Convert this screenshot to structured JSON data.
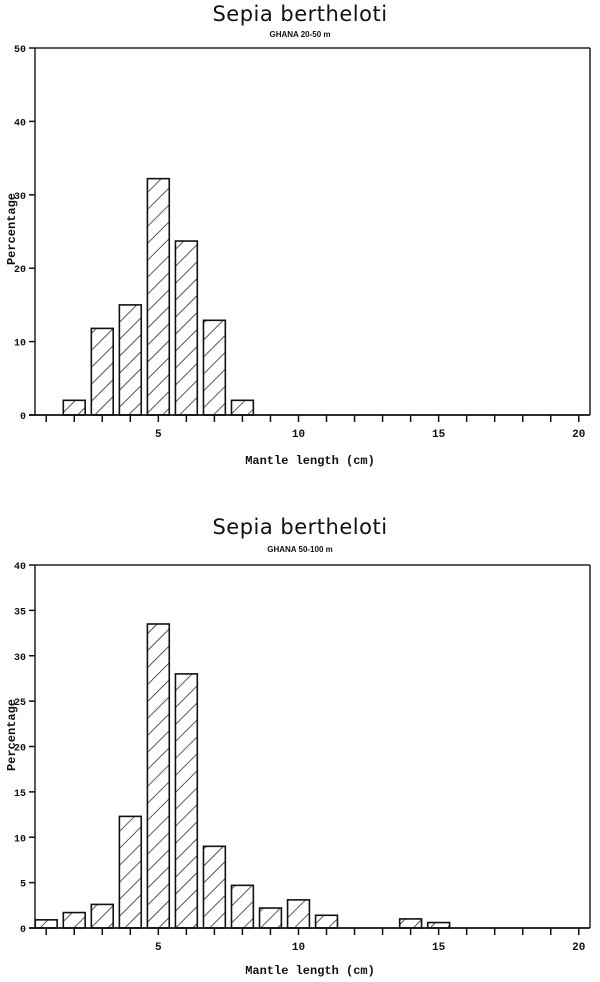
{
  "chart_data": [
    {
      "type": "bar",
      "title": "Sepia bertheloti",
      "subtitle": "GHANA 20-50 m",
      "xlabel": "Mantle length (cm)",
      "ylabel": "Percentage",
      "ylim": [
        0,
        50
      ],
      "xlim": [
        0.6,
        20.4
      ],
      "yticks": [
        0,
        10,
        20,
        30,
        40,
        50
      ],
      "xticks_labeled": [
        5,
        10,
        15,
        20
      ],
      "grid": false,
      "bar_fill": "diagonal-hatch",
      "x": [
        2,
        3,
        4,
        5,
        6,
        7,
        8
      ],
      "values": [
        2.0,
        11.8,
        15.0,
        32.2,
        23.7,
        12.9,
        2.0
      ]
    },
    {
      "type": "bar",
      "title": "Sepia bertheloti",
      "subtitle": "GHANA 50-100 m",
      "xlabel": "Mantle length (cm)",
      "ylabel": "Percentage",
      "ylim": [
        0,
        40
      ],
      "xlim": [
        0.6,
        20.4
      ],
      "yticks": [
        0,
        5,
        10,
        15,
        20,
        25,
        30,
        35,
        40
      ],
      "xticks_labeled": [
        5,
        10,
        15,
        20
      ],
      "grid": false,
      "bar_fill": "diagonal-hatch",
      "x": [
        1,
        2,
        3,
        4,
        5,
        6,
        7,
        8,
        9,
        10,
        11,
        14,
        15
      ],
      "values": [
        0.9,
        1.7,
        2.6,
        12.3,
        33.5,
        28.0,
        9.0,
        4.7,
        2.2,
        3.1,
        1.4,
        1.0,
        0.6
      ]
    }
  ]
}
